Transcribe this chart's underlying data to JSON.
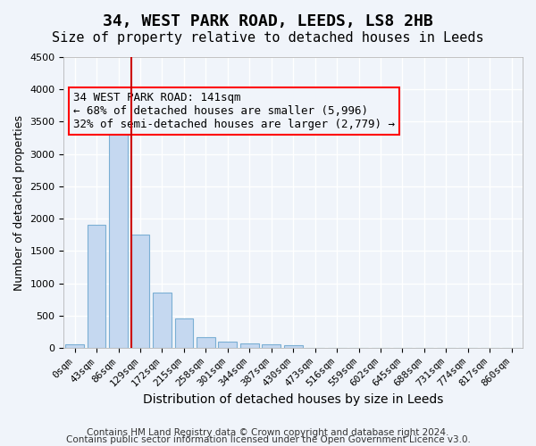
{
  "title1": "34, WEST PARK ROAD, LEEDS, LS8 2HB",
  "title2": "Size of property relative to detached houses in Leeds",
  "xlabel": "Distribution of detached houses by size in Leeds",
  "ylabel": "Number of detached properties",
  "bar_color": "#c5d8f0",
  "bar_edge_color": "#7bafd4",
  "annotation_box_color": "#ff0000",
  "vline_color": "#cc0000",
  "categories": [
    "0sqm",
    "43sqm",
    "86sqm",
    "129sqm",
    "172sqm",
    "215sqm",
    "258sqm",
    "301sqm",
    "344sqm",
    "387sqm",
    "430sqm",
    "473sqm",
    "516sqm",
    "559sqm",
    "602sqm",
    "645sqm",
    "688sqm",
    "731sqm",
    "774sqm",
    "817sqm",
    "860sqm"
  ],
  "values": [
    50,
    1900,
    3500,
    1750,
    850,
    450,
    160,
    100,
    75,
    60,
    45,
    0,
    0,
    0,
    0,
    0,
    0,
    0,
    0,
    0,
    0
  ],
  "ylim": [
    0,
    4500
  ],
  "yticks": [
    0,
    500,
    1000,
    1500,
    2000,
    2500,
    3000,
    3500,
    4000,
    4500
  ],
  "vline_x": 3.0,
  "annotation_text": "34 WEST PARK ROAD: 141sqm\n← 68% of detached houses are smaller (5,996)\n32% of semi-detached houses are larger (2,779) →",
  "footer1": "Contains HM Land Registry data © Crown copyright and database right 2024.",
  "footer2": "Contains public sector information licensed under the Open Government Licence v3.0.",
  "background_color": "#f0f4fa",
  "grid_color": "#ffffff",
  "title_fontsize": 13,
  "subtitle_fontsize": 11,
  "annotation_fontsize": 9,
  "tick_fontsize": 8,
  "footer_fontsize": 7.5
}
